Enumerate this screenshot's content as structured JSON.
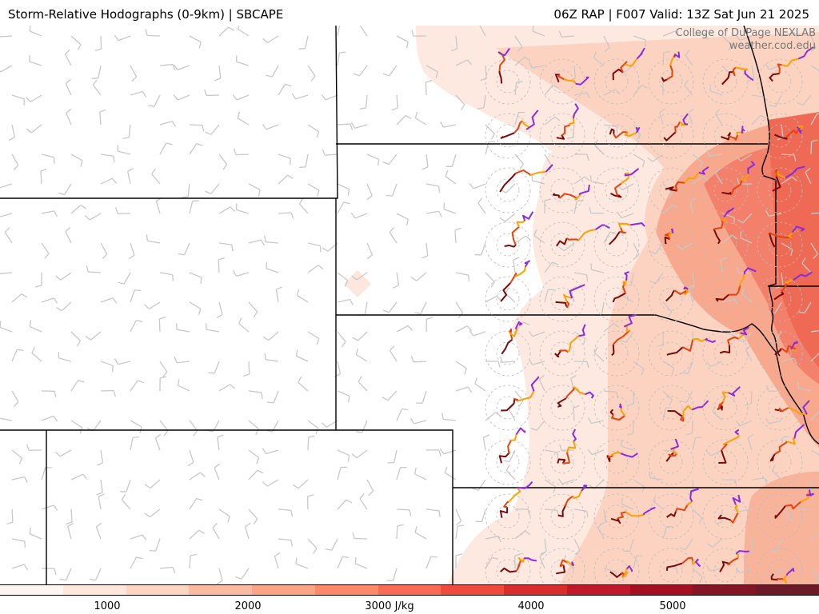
{
  "header": {
    "title": "Storm-Relative Hodographs (0-9km) | SBCAPE",
    "run_info": "06Z RAP | F007 Valid: 13Z Sat Jun 21 2025"
  },
  "credit": {
    "line1": "College of DuPage NEXLAB",
    "line2": "weather.cod.edu"
  },
  "colorbar": {
    "unit": "J/kg",
    "tick_labels": [
      "1000",
      "2000",
      "3000 J/kg",
      "4000",
      "5000"
    ],
    "tick_values": [
      1000,
      2000,
      3000,
      4000,
      5000
    ],
    "range": [
      0,
      6000
    ],
    "colors": [
      "#fff5f0",
      "#fee8dd",
      "#fdd5c0",
      "#fcbba1",
      "#fca486",
      "#fc8a6a",
      "#f96b53",
      "#ef4b3c",
      "#d92c2c",
      "#c1182b",
      "#a50f22",
      "#841524",
      "#6c1a27"
    ]
  },
  "map": {
    "cape_colors": [
      "#fde6dc",
      "#fcc9b5",
      "#f99e82",
      "#f47e62",
      "#ee6452"
    ],
    "hodograph_colors": {
      "layer_0_1km": "#7a0a0a",
      "layer_1_3km": "#e8420e",
      "layer_3_6km": "#ffa000",
      "layer_6_9km": "#8a2be2"
    },
    "barb_color": "#c8c8c8",
    "border_color": "#000000"
  }
}
